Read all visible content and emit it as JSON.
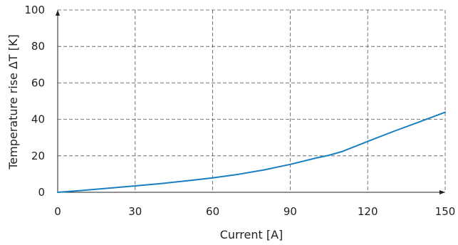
{
  "chart_data": {
    "type": "line",
    "xlabel": "Current [A]",
    "ylabel": "Temperature rise ΔT [K]",
    "xlim": [
      0,
      150
    ],
    "ylim": [
      0,
      100
    ],
    "xticks": [
      0,
      30,
      60,
      90,
      120,
      150
    ],
    "yticks": [
      0,
      20,
      40,
      60,
      80,
      100
    ],
    "grid": true,
    "line_color": "#1a7fc0",
    "series": [
      {
        "x": [
          0,
          10,
          20,
          30,
          40,
          50,
          60,
          70,
          80,
          90,
          100,
          105,
          110,
          120,
          130,
          140,
          150
        ],
        "y": [
          0,
          1.1,
          2.3,
          3.5,
          4.8,
          6.3,
          7.9,
          9.9,
          12.3,
          15.3,
          18.8,
          20.3,
          22.3,
          27.9,
          33.4,
          38.6,
          43.9
        ]
      }
    ]
  }
}
